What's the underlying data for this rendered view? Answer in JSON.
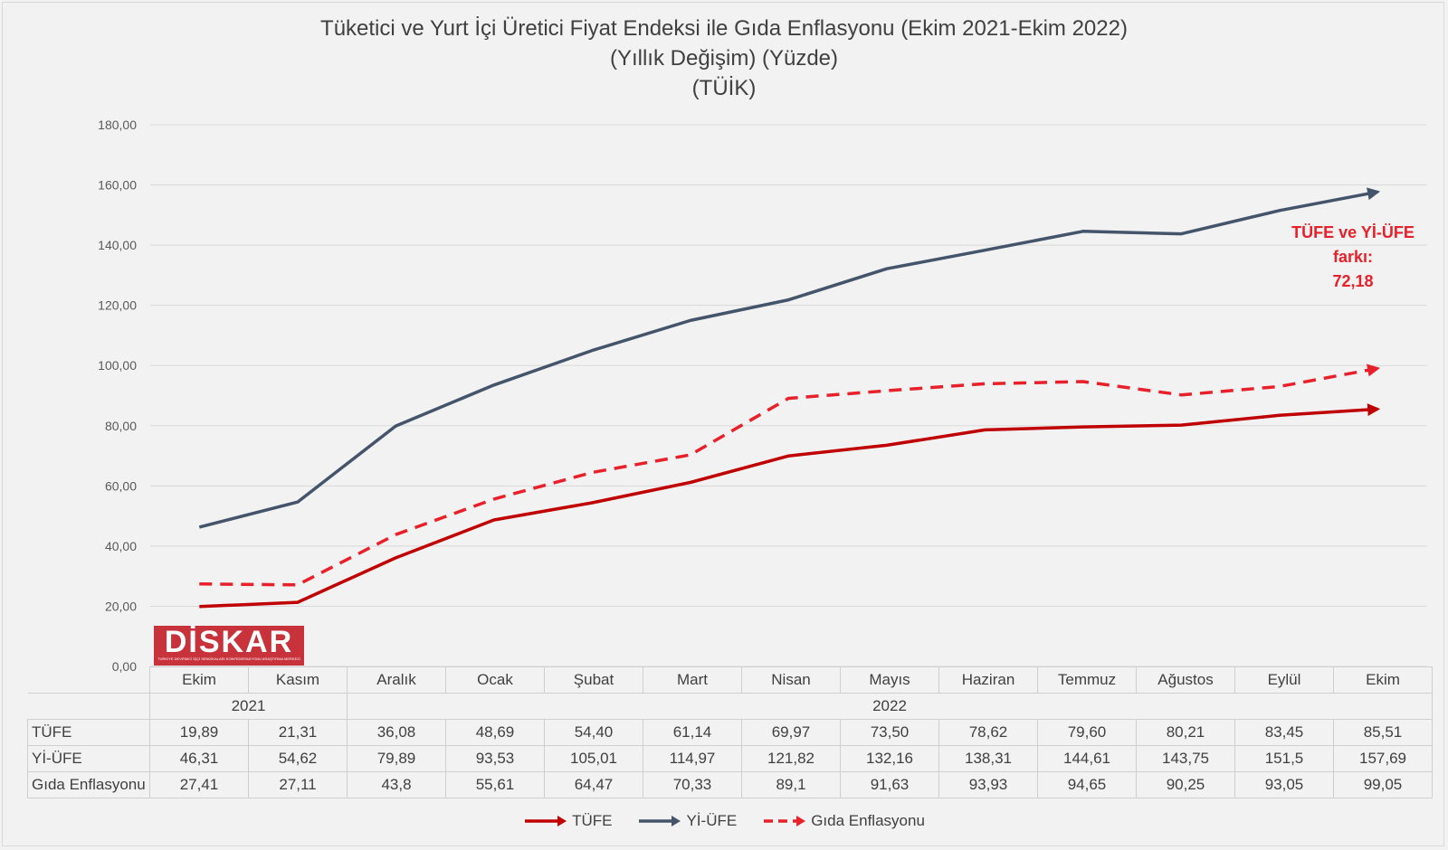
{
  "chart_data": {
    "type": "line",
    "title": "Tüketici ve Yurt İçi Üretici Fiyat Endeksi ile Gıda Enflasyonu (Ekim 2021-Ekim 2022)",
    "subtitle_lines": [
      "(Yıllık Değişim) (Yüzde)",
      "(TÜİK)"
    ],
    "categories": [
      "Ekim",
      "Kasım",
      "Aralık",
      "Ocak",
      "Şubat",
      "Mart",
      "Nisan",
      "Mayıs",
      "Haziran",
      "Temmuz",
      "Ağustos",
      "Eylül",
      "Ekim"
    ],
    "year_groups": [
      {
        "label": "2021",
        "span": 2
      },
      {
        "label": "2022",
        "span": 11
      }
    ],
    "y_ticks": [
      "0,00",
      "20,00",
      "40,00",
      "60,00",
      "80,00",
      "100,00",
      "120,00",
      "140,00",
      "160,00",
      "180,00"
    ],
    "ylim": [
      0,
      180
    ],
    "grid": true,
    "legend_position": "bottom",
    "series": [
      {
        "name": "TÜFE",
        "color": "#c00000",
        "dash": false,
        "values": [
          19.89,
          21.31,
          36.08,
          48.69,
          54.4,
          61.14,
          69.97,
          73.5,
          78.62,
          79.6,
          80.21,
          83.45,
          85.51
        ],
        "labels": [
          "19,89",
          "21,31",
          "36,08",
          "48,69",
          "54,40",
          "61,14",
          "69,97",
          "73,50",
          "78,62",
          "79,60",
          "80,21",
          "83,45",
          "85,51"
        ]
      },
      {
        "name": "Yİ-ÜFE",
        "color": "#44546a",
        "dash": false,
        "values": [
          46.31,
          54.62,
          79.89,
          93.53,
          105.01,
          114.97,
          121.82,
          132.16,
          138.31,
          144.61,
          143.75,
          151.5,
          157.69
        ],
        "labels": [
          "46,31",
          "54,62",
          "79,89",
          "93,53",
          "105,01",
          "114,97",
          "121,82",
          "132,16",
          "138,31",
          "144,61",
          "143,75",
          "151,5",
          "157,69"
        ]
      },
      {
        "name": "Gıda Enflasyonu",
        "color": "#e8202a",
        "dash": true,
        "values": [
          27.41,
          27.11,
          43.8,
          55.61,
          64.47,
          70.33,
          89.1,
          91.63,
          93.93,
          94.65,
          90.25,
          93.05,
          99.05
        ],
        "labels": [
          "27,41",
          "27,11",
          "43,8",
          "55,61",
          "64,47",
          "70,33",
          "89,1",
          "91,63",
          "93,93",
          "94,65",
          "90,25",
          "93,05",
          "99,05"
        ]
      }
    ],
    "annotation": {
      "lines": [
        "TÜFE ve Yİ-ÜFE",
        "farkı:",
        "72,18"
      ],
      "color": "#e8202a"
    }
  },
  "logo": {
    "text": "DİSKAR",
    "subtext": "TÜRKİYE DEVRİMCİ İŞÇİ SENDİKALARI KONFEDERASYONU ARAŞTIRMA MERKEZİ"
  }
}
